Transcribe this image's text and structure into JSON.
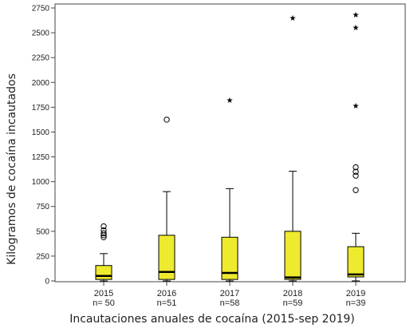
{
  "chart_data": {
    "type": "boxplot",
    "title": "",
    "xlabel": "Incautaciones anuales de cocaína (2015-sep 2019)",
    "ylabel": "Kilogramos de cocaína incautados",
    "ylim": [
      0,
      2750
    ],
    "yticks": [
      0,
      250,
      500,
      750,
      1000,
      1250,
      1500,
      1750,
      2000,
      2250,
      2500,
      2750
    ],
    "grid": false,
    "box_color": "#eeea2e",
    "categories": [
      {
        "year": "2015",
        "n_label": "n= 50"
      },
      {
        "year": "2016",
        "n_label": "n=51"
      },
      {
        "year": "2017",
        "n_label": "n=58"
      },
      {
        "year": "2018",
        "n_label": "n=59"
      },
      {
        "year": "2019",
        "n_label": "n=39"
      }
    ],
    "boxes": [
      {
        "min": 0,
        "q1": 15,
        "median": 50,
        "q3": 155,
        "max": 275,
        "outliers": [
          440,
          460,
          480,
          510,
          550
        ],
        "extremes": []
      },
      {
        "min": 0,
        "q1": 15,
        "median": 90,
        "q3": 460,
        "max": 900,
        "outliers": [
          1625
        ],
        "extremes": []
      },
      {
        "min": 0,
        "q1": 15,
        "median": 80,
        "q3": 440,
        "max": 930,
        "outliers": [],
        "extremes": [
          1820
        ]
      },
      {
        "min": 0,
        "q1": 15,
        "median": 35,
        "q3": 500,
        "max": 1105,
        "outliers": [],
        "extremes": [
          2650
        ]
      },
      {
        "min": 0,
        "q1": 40,
        "median": 65,
        "q3": 345,
        "max": 480,
        "outliers": [
          915,
          1060,
          1100,
          1145
        ],
        "extremes": [
          1765,
          2555,
          2680
        ]
      }
    ]
  }
}
